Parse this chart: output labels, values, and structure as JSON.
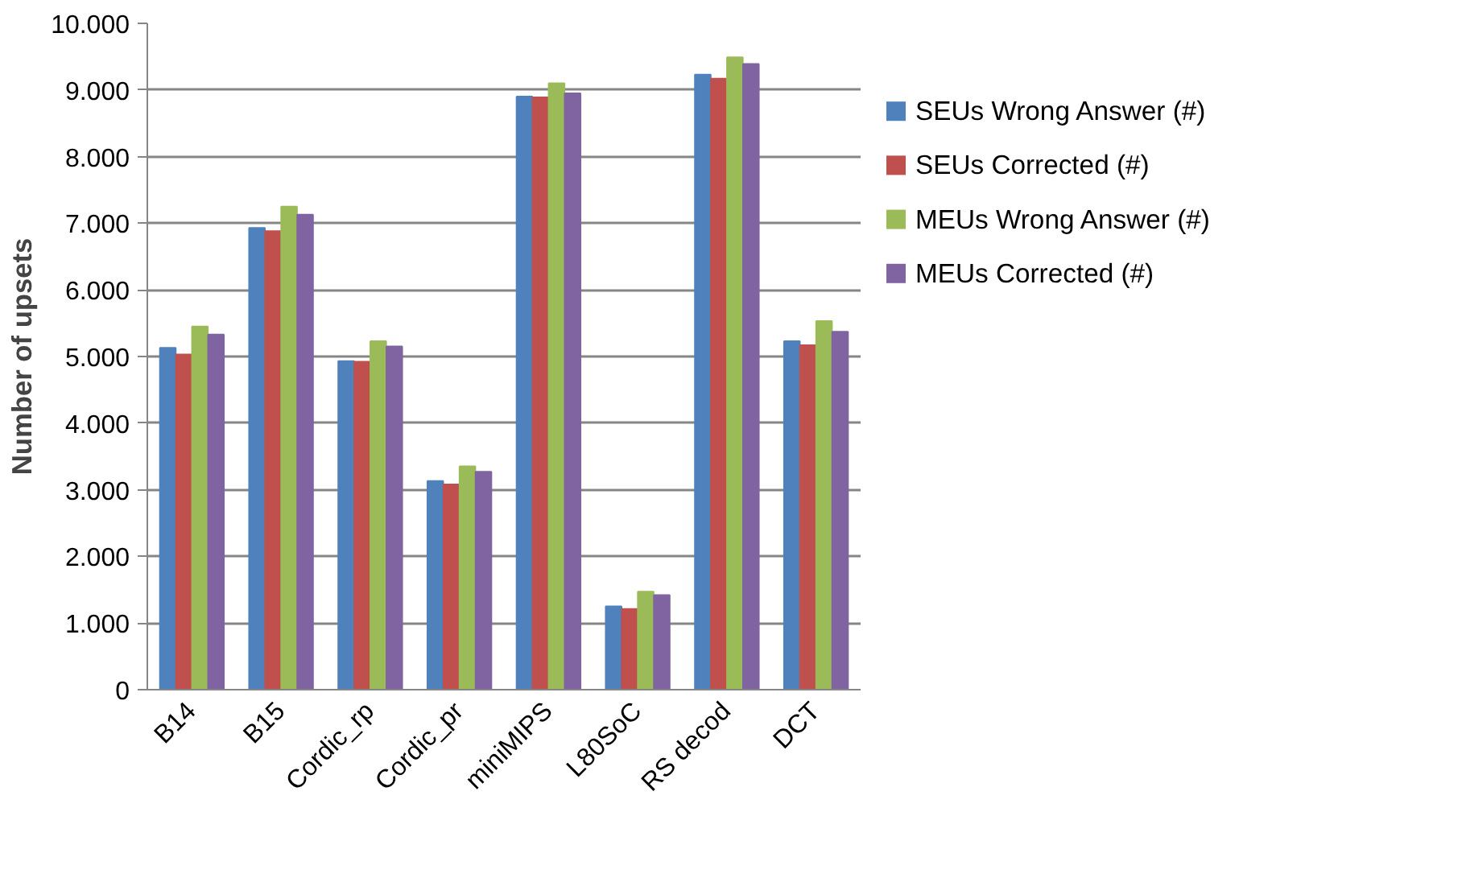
{
  "chart_data": {
    "type": "bar",
    "ylabel": "Number of upsets",
    "categories": [
      "B14",
      "B15",
      "Cordic_rp",
      "Cordic_pr",
      "miniMIPS",
      "L80SoC",
      "RS decod",
      "DCT"
    ],
    "series": [
      {
        "name": "SEUs Wrong Answer (#)",
        "color": "#4f81bd",
        "values": [
          5130,
          6930,
          4930,
          3130,
          8900,
          1250,
          9230,
          5230
        ]
      },
      {
        "name": "SEUs Corrected (#)",
        "color": "#c0504d",
        "values": [
          5030,
          6880,
          4920,
          3080,
          8890,
          1210,
          9170,
          5170
        ]
      },
      {
        "name": "MEUs Wrong Answer (#)",
        "color": "#9bbb59",
        "values": [
          5450,
          7250,
          5230,
          3350,
          9100,
          1470,
          9490,
          5530
        ]
      },
      {
        "name": "MEUs Corrected (#)",
        "color": "#8064a2",
        "values": [
          5330,
          7130,
          5150,
          3270,
          8950,
          1420,
          9390,
          5370
        ]
      }
    ],
    "ylim": [
      0,
      10000
    ],
    "yticks": [
      {
        "value": 0,
        "label": "0"
      },
      {
        "value": 1000,
        "label": "1.000"
      },
      {
        "value": 2000,
        "label": "2.000"
      },
      {
        "value": 3000,
        "label": "3.000"
      },
      {
        "value": 4000,
        "label": "4.000"
      },
      {
        "value": 5000,
        "label": "5.000"
      },
      {
        "value": 6000,
        "label": "6.000"
      },
      {
        "value": 7000,
        "label": "7.000"
      },
      {
        "value": 8000,
        "label": "8.000"
      },
      {
        "value": 9000,
        "label": "9.000"
      },
      {
        "value": 10000,
        "label": "10.000"
      }
    ],
    "grid": "y",
    "legend": "right"
  }
}
